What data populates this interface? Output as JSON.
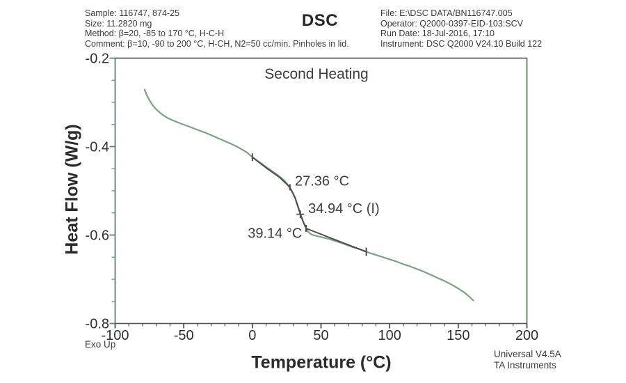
{
  "header": {
    "left_lines": [
      "Sample: 116747, 874-25",
      "Size: 11.2820 mg",
      "Method: β=20, -85 to 170 °C, H-C-H",
      "Comment: β=10, -90 to 200 °C, H-CH, N2=50 cc/min. Pinholes in lid."
    ],
    "title": "DSC",
    "right_lines": [
      "File: E:\\DSC DATA/BN116747.005",
      "Operator: Q2000-0397-EID-103:SCV",
      "Run Date: 18-Jul-2016, 17:10",
      "Instrument: DSC Q2000 V24.10 Build 122"
    ]
  },
  "footer": {
    "exo_label": "Exo Up",
    "software": "Universal V4.5A",
    "vendor": "TA Instruments"
  },
  "chart_data": {
    "type": "line",
    "title": "Second Heating",
    "xlabel": "Temperature (°C)",
    "ylabel": "Heat Flow (W/g)",
    "xlim": [
      -100,
      200
    ],
    "ylim": [
      -0.8,
      -0.2
    ],
    "x_major_ticks": [
      -100,
      -50,
      0,
      50,
      100,
      150,
      200
    ],
    "x_minor_step": 10,
    "y_major_ticks": [
      -0.2,
      -0.4,
      -0.6,
      -0.8
    ],
    "y_minor_step": 0.05,
    "grid": false,
    "exo_direction": "Exo Up",
    "colors": {
      "curve": "#79a47f",
      "fit": "#4b4e4c",
      "axis": "#4c564e",
      "axis_right": "#4f9157",
      "axis_left": "#5d7a78",
      "y_tick": "#4f9157",
      "x_tick": "#464f48",
      "tick_label": "#303030",
      "annotation": "#3c3c3c"
    },
    "series": [
      {
        "name": "heat-flow-curve",
        "color_key": "curve",
        "width": 2.2,
        "points": [
          [
            -78.5,
            -0.271
          ],
          [
            -77,
            -0.283
          ],
          [
            -75,
            -0.295
          ],
          [
            -72.5,
            -0.307
          ],
          [
            -70,
            -0.316
          ],
          [
            -66,
            -0.327
          ],
          [
            -62,
            -0.335
          ],
          [
            -57,
            -0.342
          ],
          [
            -52,
            -0.348
          ],
          [
            -46,
            -0.355
          ],
          [
            -40,
            -0.362
          ],
          [
            -34,
            -0.369
          ],
          [
            -28,
            -0.377
          ],
          [
            -22,
            -0.385
          ],
          [
            -16,
            -0.393
          ],
          [
            -10,
            -0.402
          ],
          [
            -4,
            -0.413
          ],
          [
            0,
            -0.424
          ],
          [
            5,
            -0.435
          ],
          [
            10,
            -0.446
          ],
          [
            15,
            -0.457
          ],
          [
            20,
            -0.468
          ],
          [
            24,
            -0.479
          ],
          [
            27,
            -0.492
          ],
          [
            29.5,
            -0.505
          ],
          [
            31.5,
            -0.519
          ],
          [
            33.5,
            -0.537
          ],
          [
            35.5,
            -0.557
          ],
          [
            37.5,
            -0.573
          ],
          [
            39,
            -0.584
          ],
          [
            40.5,
            -0.592
          ],
          [
            42.5,
            -0.598
          ],
          [
            45,
            -0.601
          ],
          [
            48,
            -0.603
          ],
          [
            52,
            -0.606
          ],
          [
            56,
            -0.609
          ],
          [
            60,
            -0.613
          ],
          [
            65,
            -0.618
          ],
          [
            70,
            -0.624
          ],
          [
            75,
            -0.629
          ],
          [
            80,
            -0.634
          ],
          [
            85,
            -0.64
          ],
          [
            90,
            -0.645
          ],
          [
            95,
            -0.65
          ],
          [
            100,
            -0.655
          ],
          [
            105,
            -0.66
          ],
          [
            110,
            -0.666
          ],
          [
            115,
            -0.671
          ],
          [
            120,
            -0.677
          ],
          [
            125,
            -0.683
          ],
          [
            130,
            -0.69
          ],
          [
            135,
            -0.697
          ],
          [
            140,
            -0.704
          ],
          [
            145,
            -0.712
          ],
          [
            150,
            -0.721
          ],
          [
            154,
            -0.729
          ],
          [
            158,
            -0.739
          ],
          [
            161,
            -0.748
          ]
        ]
      },
      {
        "name": "glass-transition-fit",
        "color_key": "fit",
        "width": 2,
        "points": [
          [
            0,
            -0.424
          ],
          [
            10,
            -0.448
          ],
          [
            20,
            -0.47
          ],
          [
            27.36,
            -0.492
          ],
          [
            31,
            -0.515
          ],
          [
            34.94,
            -0.553
          ],
          [
            37,
            -0.57
          ],
          [
            39.14,
            -0.585
          ],
          [
            83,
            -0.638
          ]
        ]
      }
    ],
    "markers": [
      {
        "type": "tick",
        "x": 0,
        "y": -0.424,
        "size": 11
      },
      {
        "type": "tick",
        "x": 27.36,
        "y": -0.492,
        "size": 9
      },
      {
        "type": "plus",
        "x": 34.94,
        "y": -0.553,
        "size": 11
      },
      {
        "type": "tick",
        "x": 39.14,
        "y": -0.585,
        "size": 10
      },
      {
        "type": "tick",
        "x": 83,
        "y": -0.638,
        "size": 12
      }
    ],
    "annotations": [
      {
        "text": "27.36 °C",
        "x": 31.0,
        "y": -0.488,
        "anchor": "start"
      },
      {
        "text": "34.94 °C (I)",
        "x": 40.7,
        "y": -0.55,
        "anchor": "start"
      },
      {
        "text": "39.14 °C",
        "x": 36.2,
        "y": -0.606,
        "anchor": "end"
      }
    ]
  }
}
